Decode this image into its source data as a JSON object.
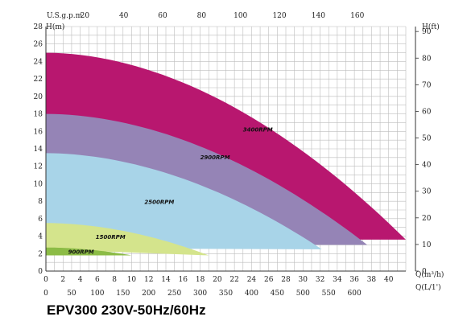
{
  "title": "EPV300 230V-50Hz/60Hz",
  "chart_data": {
    "type": "area",
    "title": "EPV300 230V-50Hz/60Hz",
    "ylabel_left": "H(m)",
    "ylabel_right": "H(ft)",
    "xlabel_top": "U.S.g.p.m",
    "xlabel_m3h": "Q(m³/h)",
    "xlabel_lmin": "Q(L/1')",
    "xlim": [
      0,
      42
    ],
    "ylim": [
      0,
      28
    ],
    "grid": true,
    "x_ticks_m3h": [
      0,
      2,
      4,
      6,
      8,
      10,
      12,
      14,
      16,
      18,
      20,
      22,
      24,
      26,
      28,
      30,
      32,
      34,
      36,
      38,
      40
    ],
    "y_ticks_m": [
      0,
      2,
      4,
      6,
      8,
      10,
      12,
      14,
      16,
      18,
      20,
      22,
      24,
      26,
      28
    ],
    "top_ticks_usgpm": [
      20,
      40,
      60,
      80,
      100,
      120,
      140,
      160
    ],
    "bottom_ticks_lmin": [
      0,
      50,
      100,
      150,
      200,
      250,
      300,
      350,
      400,
      450,
      500,
      550,
      600
    ],
    "right_ticks_ft": [
      0,
      10,
      20,
      30,
      40,
      50,
      60,
      70,
      80,
      90
    ],
    "series": [
      {
        "name": "3400RPM",
        "color": "#b8176f",
        "shutoff_head": 25,
        "max_flow": 42,
        "end_head": 3.6,
        "lower_start": 3.6,
        "lower_end": 3.6,
        "label_at": [
          23,
          16
        ]
      },
      {
        "name": "2900RPM",
        "color": "#9584b6",
        "shutoff_head": 18,
        "max_flow": 37.5,
        "end_head": 3.0,
        "lower_start": 3.0,
        "lower_end": 3.0,
        "label_at": [
          18,
          12.8
        ]
      },
      {
        "name": "2500RPM",
        "color": "#a8d4e8",
        "shutoff_head": 13.5,
        "max_flow": 32.2,
        "end_head": 2.5,
        "lower_start": 2.6,
        "lower_end": 2.5,
        "label_at": [
          11.5,
          7.7
        ]
      },
      {
        "name": "1500RPM",
        "color": "#d4e48c",
        "shutoff_head": 5.5,
        "max_flow": 19,
        "end_head": 1.8,
        "lower_start": 2.5,
        "lower_end": 1.8,
        "label_at": [
          5.8,
          3.7
        ]
      },
      {
        "name": "900RPM",
        "color": "#8cbc46",
        "shutoff_head": 2.7,
        "max_flow": 10,
        "end_head": 1.8,
        "lower_start": 1.8,
        "lower_end": 1.8,
        "label_at": [
          2.6,
          2.0
        ]
      }
    ]
  }
}
